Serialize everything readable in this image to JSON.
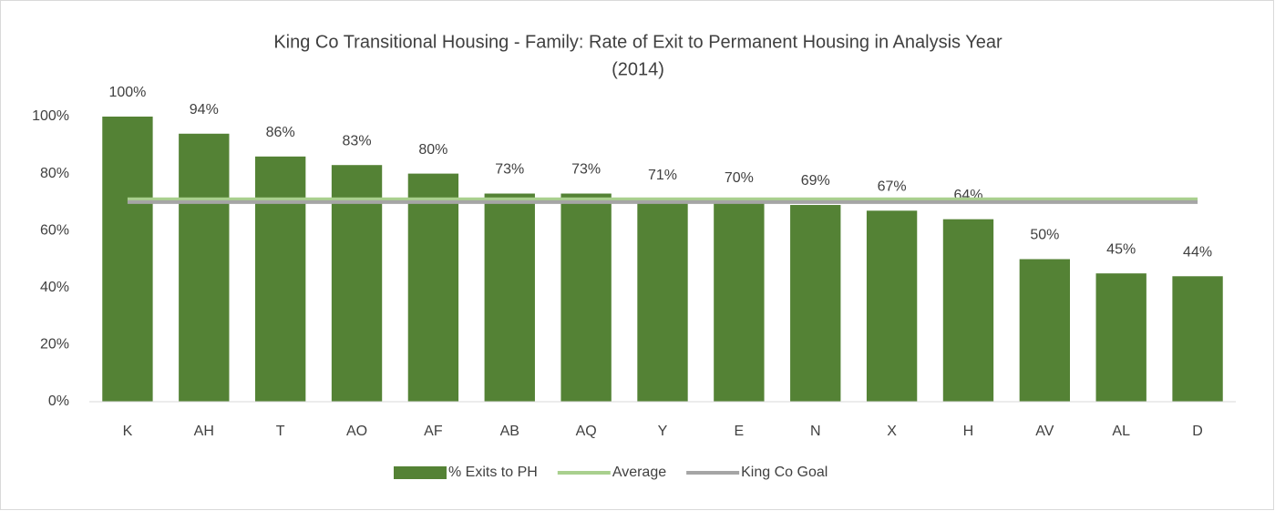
{
  "chart_data": {
    "type": "bar",
    "title": [
      "King Co Transitional Housing - Family: Rate of Exit to Permanent Housing in Analysis Year",
      "(2014)"
    ],
    "categories": [
      "K",
      "AH",
      "T",
      "AO",
      "AF",
      "AB",
      "AQ",
      "Y",
      "E",
      "N",
      "X",
      "H",
      "AV",
      "AL",
      "D"
    ],
    "series": [
      {
        "name": "% Exits to PH",
        "type": "bar",
        "color": "#548235",
        "values": [
          100,
          94,
          86,
          83,
          80,
          73,
          73,
          71,
          70,
          69,
          67,
          64,
          50,
          45,
          44
        ],
        "value_labels": [
          "100%",
          "94%",
          "86%",
          "83%",
          "80%",
          "73%",
          "73%",
          "71%",
          "70%",
          "69%",
          "67%",
          "64%",
          "50%",
          "45%",
          "44%"
        ]
      },
      {
        "name": "Average",
        "type": "line",
        "color": "#a9d08e",
        "values": [
          71,
          71,
          71,
          71,
          71,
          71,
          71,
          71,
          71,
          71,
          71,
          71,
          71,
          71,
          71
        ]
      },
      {
        "name": "King Co Goal",
        "type": "line",
        "color": "#a5a5a5",
        "values": [
          70,
          70,
          70,
          70,
          70,
          70,
          70,
          70,
          70,
          70,
          70,
          70,
          70,
          70,
          70
        ]
      }
    ],
    "ylim": [
      0,
      100
    ],
    "yticks": [
      {
        "value": 0,
        "label": "0%"
      },
      {
        "value": 20,
        "label": "20%"
      },
      {
        "value": 40,
        "label": "40%"
      },
      {
        "value": 60,
        "label": "60%"
      },
      {
        "value": 80,
        "label": "80%"
      },
      {
        "value": 100,
        "label": "100%"
      }
    ],
    "grid": false,
    "legend": "bottom"
  }
}
